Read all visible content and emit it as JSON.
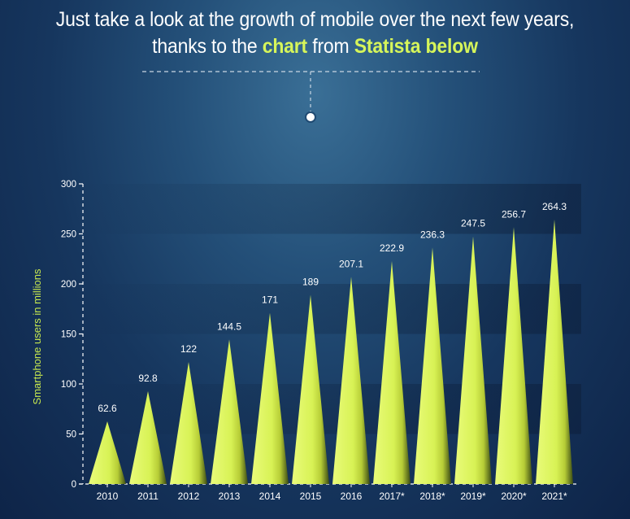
{
  "header": {
    "line1": "Just take a look at the growth of mobile over the next few years,",
    "line2_a": "thanks to the ",
    "line2_b": "chart",
    "line2_c": " from ",
    "line2_d": "Statista below"
  },
  "colors": {
    "accent": "#d6f55a",
    "axis": "#ffffff",
    "text": "#ffffff"
  },
  "chart_data": {
    "type": "bar",
    "categories": [
      "2010",
      "2011",
      "2012",
      "2013",
      "2014",
      "2015",
      "2016",
      "2017*",
      "2018*",
      "2019*",
      "2020*",
      "2021*"
    ],
    "values": [
      62.6,
      92.8,
      122,
      144.5,
      171,
      189,
      207.1,
      222.9,
      236.3,
      247.5,
      256.7,
      264.3
    ],
    "value_labels": [
      "62.6",
      "92.8",
      "122",
      "144.5",
      "171",
      "189",
      "207.1",
      "222.9",
      "236.3",
      "247.5",
      "256.7",
      "264.3"
    ],
    "title": "",
    "xlabel": "",
    "ylabel": "Smartphone users in millions",
    "ylim": [
      0,
      300
    ],
    "yticks": [
      0,
      50,
      100,
      150,
      200,
      250,
      300
    ],
    "grid": false
  }
}
